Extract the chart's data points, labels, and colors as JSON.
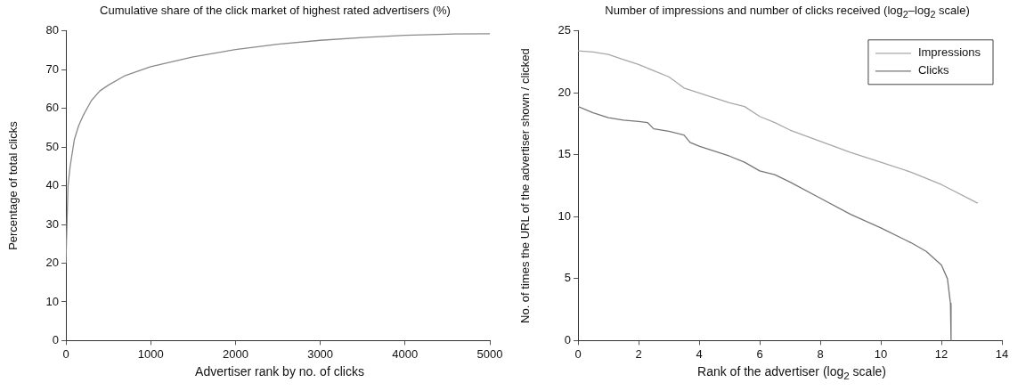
{
  "chart_data": [
    {
      "type": "line",
      "title": "Cumulative share of the click market of highest rated advertisers (%)",
      "xlabel": "Advertiser rank by no. of clicks",
      "ylabel": "Percentage of total clicks",
      "xlim": [
        0,
        5000
      ],
      "xticks": [
        0,
        1000,
        2000,
        3000,
        4000,
        5000
      ],
      "ylim": [
        0,
        80
      ],
      "yticks": [
        0,
        10,
        20,
        30,
        40,
        50,
        60,
        70,
        80
      ],
      "grid": false,
      "legend": false,
      "series": [
        {
          "color": "#8a8a8a",
          "x": [
            0,
            25,
            50,
            100,
            150,
            200,
            300,
            400,
            500,
            700,
            1000,
            1500,
            2000,
            2500,
            3000,
            3500,
            4000,
            4500,
            5000
          ],
          "values": [
            20,
            40,
            45,
            52,
            55.5,
            58,
            62,
            64.5,
            66,
            68.5,
            70.8,
            73.3,
            75.2,
            76.6,
            77.6,
            78.3,
            78.9,
            79.2,
            79.3
          ]
        }
      ]
    },
    {
      "type": "line",
      "title": "Number of impressions and number of clicks received (log$_{2}$–log$_{2}$ scale)",
      "xlabel": "Rank of the advertiser (log$_{2}$ scale)",
      "ylabel": "No. of times the URL of the advertiser shown / clicked",
      "xlim": [
        0,
        14
      ],
      "xticks": [
        0,
        2,
        4,
        6,
        8,
        10,
        12,
        14
      ],
      "ylim": [
        0,
        25
      ],
      "yticks": [
        0,
        5,
        10,
        15,
        20,
        25
      ],
      "grid": false,
      "legend": "top right",
      "series": [
        {
          "name": "Impressions",
          "color": "#a8a8a8",
          "x": [
            0,
            0.5,
            1,
            1.5,
            2,
            2.5,
            3,
            3.5,
            4,
            4.5,
            5,
            5.5,
            6,
            6.5,
            7,
            8,
            9,
            10,
            11,
            12,
            13.2
          ],
          "values": [
            23.4,
            23.3,
            23.1,
            22.7,
            22.3,
            21.8,
            21.3,
            20.4,
            20,
            19.6,
            19.2,
            18.9,
            18.1,
            17.6,
            17,
            16.1,
            15.2,
            14.4,
            13.6,
            12.6,
            11.1
          ]
        },
        {
          "name": "Clicks",
          "color": "#777777",
          "x": [
            0,
            0.5,
            1,
            1.5,
            2,
            2.3,
            2.5,
            3,
            3.5,
            3.7,
            4,
            5,
            5.5,
            6,
            6.5,
            7,
            8,
            9,
            10,
            11,
            11.5,
            12,
            12.2,
            12.3,
            12.32
          ],
          "values": [
            18.9,
            18.4,
            18,
            17.8,
            17.7,
            17.6,
            17.1,
            16.9,
            16.6,
            16,
            15.7,
            14.9,
            14.4,
            13.7,
            13.4,
            12.8,
            11.5,
            10.2,
            9.1,
            7.9,
            7.2,
            6.1,
            5,
            3,
            0
          ]
        }
      ]
    }
  ]
}
